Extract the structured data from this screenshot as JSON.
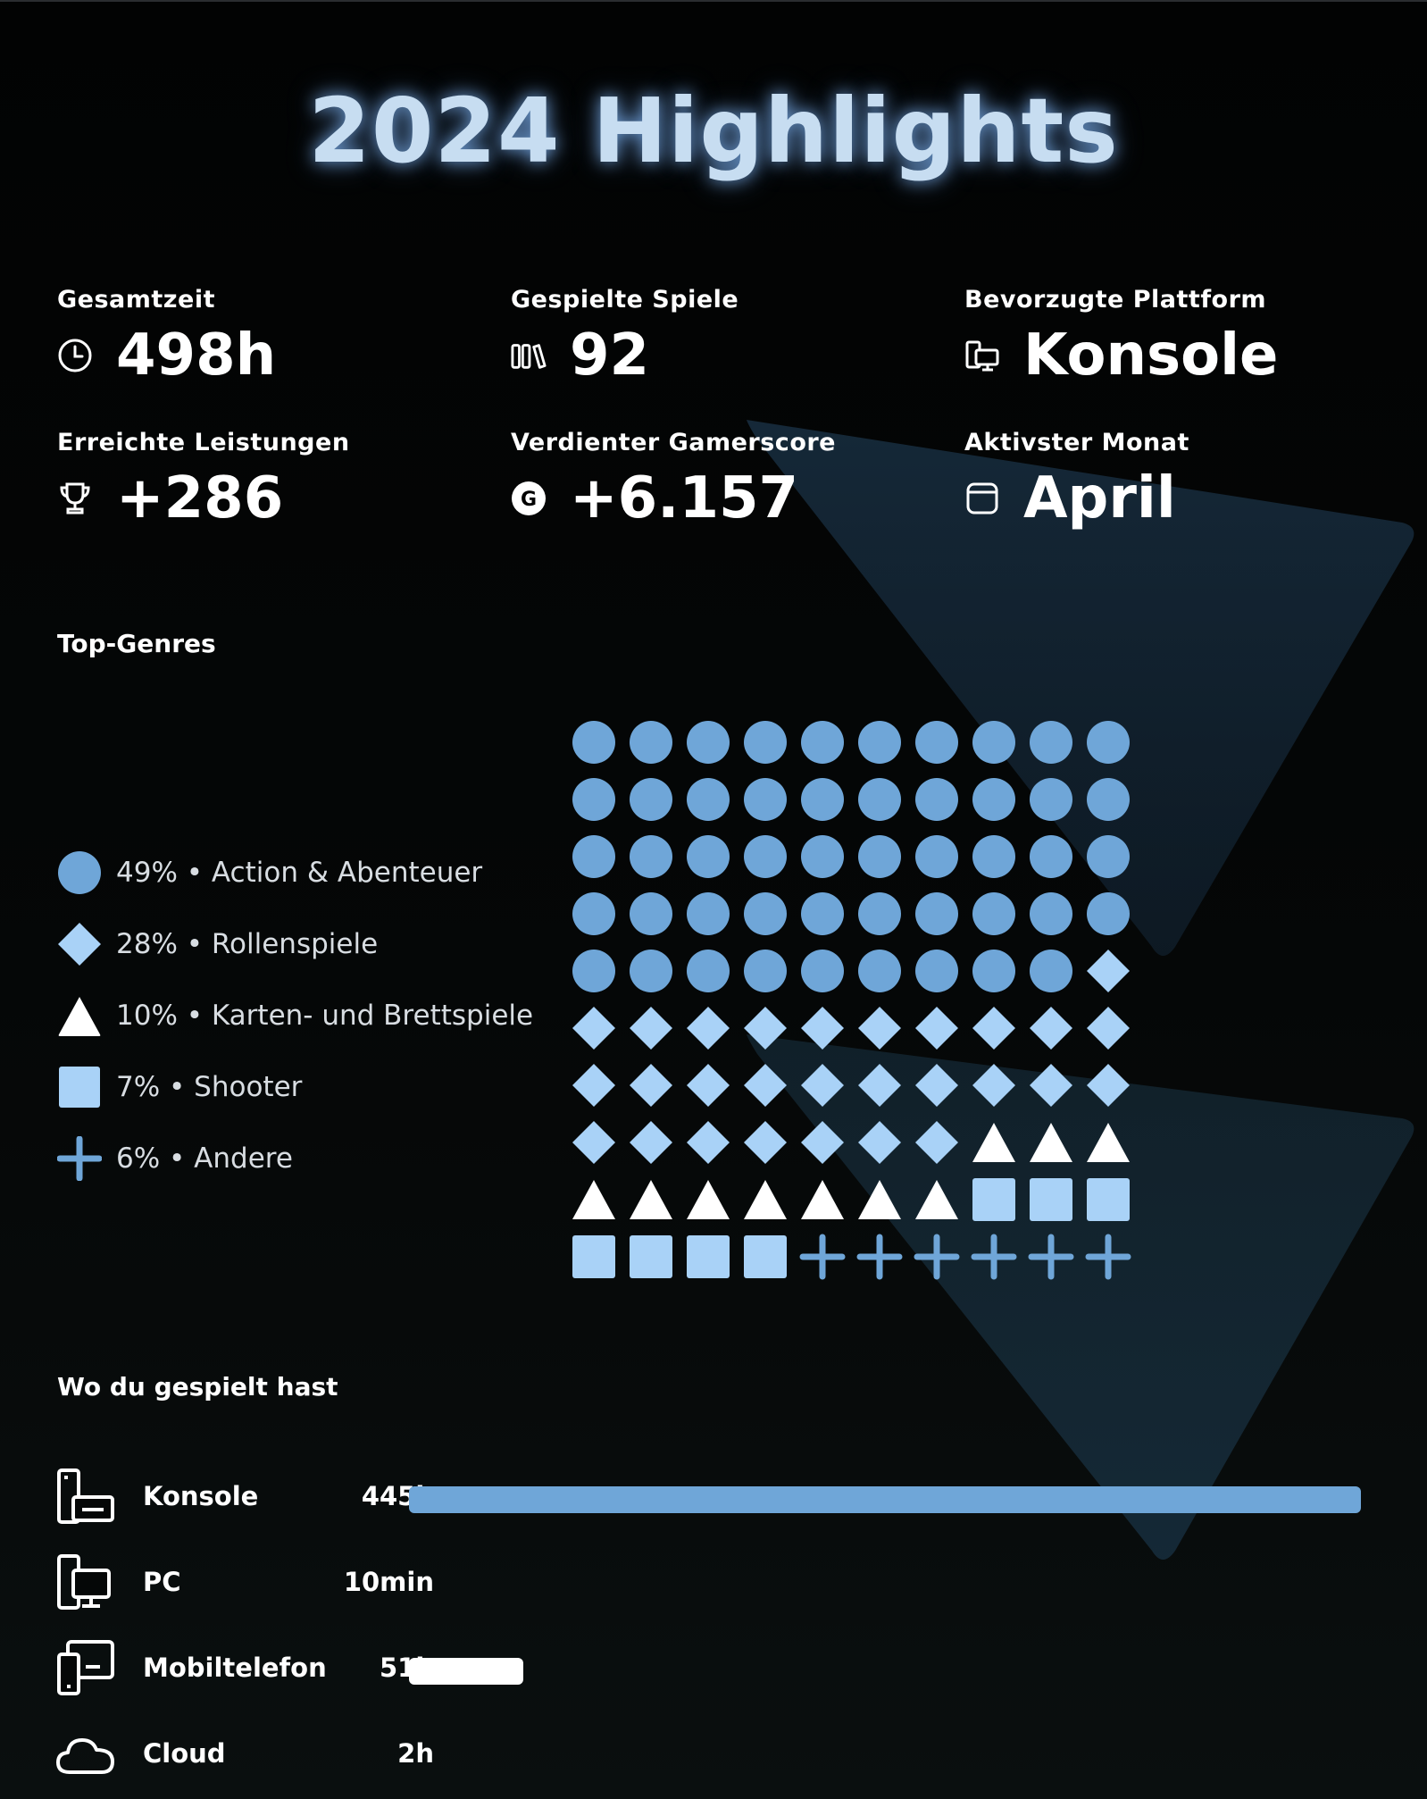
{
  "title": "2024 Highlights",
  "stats": [
    {
      "label": "Gesamtzeit",
      "value": "498h",
      "icon": "clock-icon"
    },
    {
      "label": "Gespielte Spiele",
      "value": "92",
      "icon": "game-library-icon"
    },
    {
      "label": "Bevorzugte Plattform",
      "value": "Konsole",
      "icon": "platform-devices-icon"
    },
    {
      "label": "Erreichte Leistungen",
      "value": "+286",
      "icon": "trophy-icon"
    },
    {
      "label": "Verdienter Gamerscore",
      "value": "+6.157",
      "icon": "gamerscore-icon"
    },
    {
      "label": "Aktivster Monat",
      "value": "April",
      "icon": "calendar-icon"
    }
  ],
  "genres": {
    "title": "Top-Genres",
    "items": [
      {
        "label": "49% • Action & Abenteuer",
        "percent": 49,
        "shape": "circle",
        "color": "#6fa6d8"
      },
      {
        "label": "28% • Rollenspiele",
        "percent": 28,
        "shape": "diamond",
        "color": "#a9d2f7"
      },
      {
        "label": "10% • Karten- und Brettspiele",
        "percent": 10,
        "shape": "triangle",
        "color": "#ffffff"
      },
      {
        "label": "7% • Shooter",
        "percent": 7,
        "shape": "square",
        "color": "#a9d2f7"
      },
      {
        "label": "6% • Andere",
        "percent": 6,
        "shape": "plus",
        "color": "#6fa6d8"
      }
    ]
  },
  "devices": {
    "title": "Wo du gespielt hast",
    "items": [
      {
        "name": "Konsole",
        "time": "445h",
        "share": 1.0,
        "color": "#6fa6d8",
        "icon": "console-icon"
      },
      {
        "name": "PC",
        "time": "10min",
        "share": 0.0,
        "color": "#6fa6d8",
        "icon": "pc-icon"
      },
      {
        "name": "Mobiltelefon",
        "time": "51h",
        "share": 0.12,
        "color": "#ffffff",
        "icon": "mobile-phone-icon"
      },
      {
        "name": "Cloud",
        "time": "2h",
        "share": 0.0,
        "color": "#ffffff",
        "icon": "cloud-icon"
      }
    ]
  }
}
